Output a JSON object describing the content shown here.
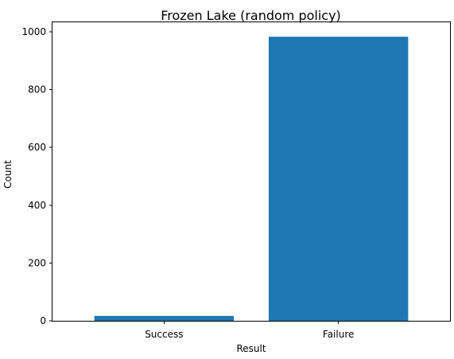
{
  "chart_data": {
    "type": "bar",
    "title": "Frozen Lake (random policy)",
    "xlabel": "Result",
    "ylabel": "Count",
    "categories": [
      "Success",
      "Failure"
    ],
    "values": [
      17,
      983
    ],
    "ylim": [
      0,
      1033
    ],
    "yticks": [
      0,
      200,
      400,
      600,
      800,
      1000
    ],
    "bar_color": "#1f77b4",
    "grid": false,
    "legend": "none"
  }
}
